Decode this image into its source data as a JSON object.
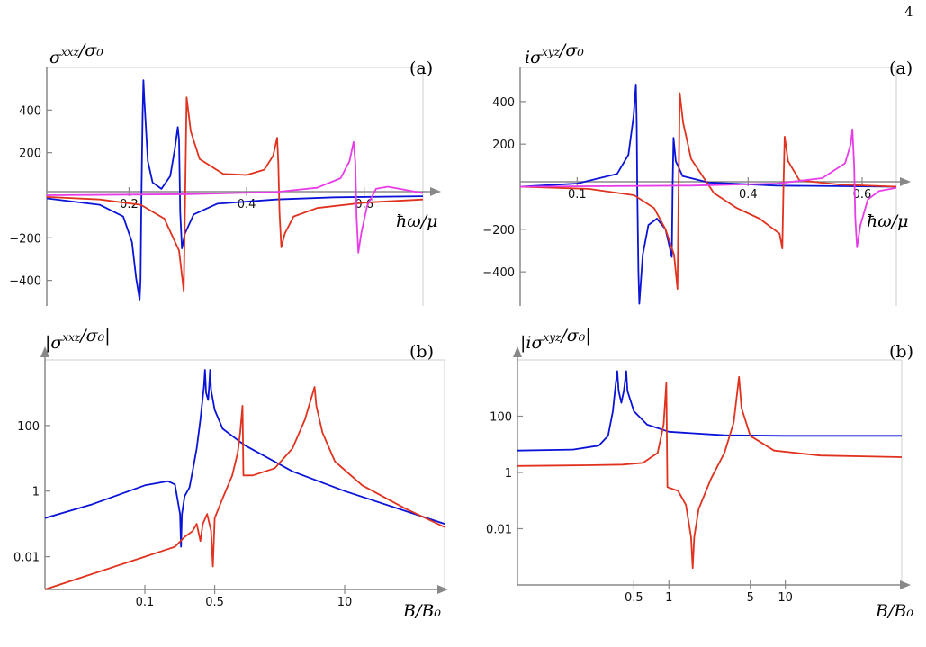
{
  "page_number": "4",
  "colors": {
    "blue": "#0a14d8",
    "red": "#e0321e",
    "magenta": "#e83ce8",
    "axis": "#888888"
  },
  "chart_data": [
    {
      "id": "tl",
      "type": "line",
      "panel_label": "(a)",
      "ylabel": "σ^{xxz}/σ₀",
      "xlabel": "ħω/μ",
      "x_scale": "linear",
      "y_scale": "linear",
      "xlim": [
        0.06,
        0.7
      ],
      "ylim": [
        -520,
        600
      ],
      "xticks": [
        {
          "v": 0.2,
          "label": "0.2"
        },
        {
          "v": 0.4,
          "label": "0.4"
        },
        {
          "v": 0.6,
          "label": "0.6"
        }
      ],
      "yticks": [
        {
          "v": 400,
          "label": "400"
        },
        {
          "v": 200,
          "label": "200"
        },
        {
          "v": -200,
          "label": "−200"
        },
        {
          "v": -400,
          "label": "−400"
        }
      ],
      "series": [
        {
          "color": "blue",
          "points": [
            [
              0.06,
              -15
            ],
            [
              0.15,
              -45
            ],
            [
              0.19,
              -100
            ],
            [
              0.205,
              -220
            ],
            [
              0.212,
              -390
            ],
            [
              0.218,
              -490
            ],
            [
              0.2195,
              -400
            ],
            [
              0.221,
              0
            ],
            [
              0.223,
              380
            ],
            [
              0.2245,
              540
            ],
            [
              0.226,
              450
            ],
            [
              0.232,
              160
            ],
            [
              0.24,
              60
            ],
            [
              0.255,
              30
            ],
            [
              0.27,
              90
            ],
            [
              0.278,
              220
            ],
            [
              0.283,
              320
            ],
            [
              0.285,
              260
            ],
            [
              0.287,
              -80
            ],
            [
              0.29,
              -250
            ],
            [
              0.295,
              -180
            ],
            [
              0.31,
              -90
            ],
            [
              0.35,
              -40
            ],
            [
              0.45,
              -20
            ],
            [
              0.55,
              -10
            ],
            [
              0.7,
              -5
            ]
          ]
        },
        {
          "color": "red",
          "points": [
            [
              0.06,
              -8
            ],
            [
              0.15,
              -20
            ],
            [
              0.22,
              -45
            ],
            [
              0.26,
              -110
            ],
            [
              0.285,
              -260
            ],
            [
              0.293,
              -450
            ],
            [
              0.2955,
              0
            ],
            [
              0.298,
              460
            ],
            [
              0.305,
              300
            ],
            [
              0.32,
              170
            ],
            [
              0.36,
              100
            ],
            [
              0.4,
              95
            ],
            [
              0.43,
              120
            ],
            [
              0.445,
              185
            ],
            [
              0.452,
              270
            ],
            [
              0.454,
              150
            ],
            [
              0.456,
              -80
            ],
            [
              0.459,
              -245
            ],
            [
              0.465,
              -180
            ],
            [
              0.48,
              -100
            ],
            [
              0.52,
              -60
            ],
            [
              0.6,
              -35
            ],
            [
              0.7,
              -20
            ]
          ]
        },
        {
          "color": "magenta",
          "points": [
            [
              0.06,
              0
            ],
            [
              0.3,
              5
            ],
            [
              0.45,
              15
            ],
            [
              0.52,
              35
            ],
            [
              0.56,
              80
            ],
            [
              0.575,
              160
            ],
            [
              0.582,
              250
            ],
            [
              0.585,
              150
            ],
            [
              0.587,
              -100
            ],
            [
              0.59,
              -270
            ],
            [
              0.595,
              -180
            ],
            [
              0.605,
              -50
            ],
            [
              0.62,
              30
            ],
            [
              0.64,
              40
            ],
            [
              0.7,
              10
            ]
          ]
        }
      ]
    },
    {
      "id": "tr",
      "type": "line",
      "panel_label": "(a)",
      "ylabel": "iσ^{xyz}/σ₀",
      "xlabel": "ħω/μ",
      "x_scale": "linear",
      "y_scale": "linear",
      "xlim": [
        0.0,
        0.66
      ],
      "ylim": [
        -560,
        560
      ],
      "xticks": [
        {
          "v": 0.1,
          "label": "0.1"
        },
        {
          "v": 0.4,
          "label": "0.4"
        },
        {
          "v": 0.6,
          "label": "0.6"
        }
      ],
      "yticks": [
        {
          "v": 400,
          "label": "400"
        },
        {
          "v": 200,
          "label": "200"
        },
        {
          "v": -200,
          "label": "−200"
        },
        {
          "v": -400,
          "label": "−400"
        }
      ],
      "series": [
        {
          "color": "blue",
          "points": [
            [
              0.0,
              0
            ],
            [
              0.1,
              15
            ],
            [
              0.17,
              60
            ],
            [
              0.19,
              150
            ],
            [
              0.199,
              330
            ],
            [
              0.203,
              480
            ],
            [
              0.2045,
              300
            ],
            [
              0.2055,
              0
            ],
            [
              0.2075,
              -400
            ],
            [
              0.209,
              -550
            ],
            [
              0.215,
              -320
            ],
            [
              0.225,
              -180
            ],
            [
              0.24,
              -150
            ],
            [
              0.255,
              -200
            ],
            [
              0.262,
              -280
            ],
            [
              0.266,
              -330
            ],
            [
              0.2675,
              0
            ],
            [
              0.269,
              230
            ],
            [
              0.273,
              120
            ],
            [
              0.285,
              50
            ],
            [
              0.33,
              20
            ],
            [
              0.45,
              5
            ],
            [
              0.66,
              0
            ]
          ]
        },
        {
          "color": "red",
          "points": [
            [
              0.0,
              0
            ],
            [
              0.12,
              -10
            ],
            [
              0.2,
              -40
            ],
            [
              0.235,
              -100
            ],
            [
              0.255,
              -200
            ],
            [
              0.27,
              -320
            ],
            [
              0.276,
              -480
            ],
            [
              0.278,
              0
            ],
            [
              0.28,
              440
            ],
            [
              0.286,
              300
            ],
            [
              0.3,
              130
            ],
            [
              0.34,
              -30
            ],
            [
              0.38,
              -100
            ],
            [
              0.42,
              -150
            ],
            [
              0.455,
              -220
            ],
            [
              0.46,
              -290
            ],
            [
              0.462,
              0
            ],
            [
              0.464,
              235
            ],
            [
              0.47,
              120
            ],
            [
              0.49,
              30
            ],
            [
              0.56,
              10
            ],
            [
              0.66,
              0
            ]
          ]
        },
        {
          "color": "magenta",
          "points": [
            [
              0.0,
              0
            ],
            [
              0.3,
              5
            ],
            [
              0.45,
              15
            ],
            [
              0.53,
              40
            ],
            [
              0.57,
              110
            ],
            [
              0.58,
              200
            ],
            [
              0.583,
              270
            ],
            [
              0.586,
              100
            ],
            [
              0.588,
              -150
            ],
            [
              0.591,
              -285
            ],
            [
              0.597,
              -180
            ],
            [
              0.61,
              -60
            ],
            [
              0.63,
              -20
            ],
            [
              0.66,
              -5
            ]
          ]
        }
      ]
    },
    {
      "id": "bl",
      "type": "line",
      "panel_label": "(b)",
      "ylabel": "|σ^{xxz}/σ₀|",
      "xlabel": "B/B₀",
      "x_scale": "log",
      "y_scale": "log",
      "xlim": [
        0.01,
        100
      ],
      "ylim": [
        0.001,
        10000
      ],
      "xticks": [
        {
          "v": 0.1,
          "label": "0.1"
        },
        {
          "v": 0.5,
          "label": "0.5"
        },
        {
          "v": 10,
          "label": "10"
        }
      ],
      "yticks": [
        {
          "v": 100,
          "label": "100"
        },
        {
          "v": 1,
          "label": "1"
        },
        {
          "v": 0.01,
          "label": "0.01"
        }
      ],
      "series": [
        {
          "color": "blue",
          "points": [
            [
              0.01,
              0.15
            ],
            [
              0.03,
              0.4
            ],
            [
              0.1,
              1.5
            ],
            [
              0.17,
              2.0
            ],
            [
              0.2,
              1.6
            ],
            [
              0.225,
              0.2
            ],
            [
              0.23,
              0.02
            ],
            [
              0.235,
              0.2
            ],
            [
              0.25,
              0.7
            ],
            [
              0.28,
              1.3
            ],
            [
              0.3,
              4
            ],
            [
              0.33,
              20
            ],
            [
              0.36,
              150
            ],
            [
              0.39,
              1500
            ],
            [
              0.4,
              5000
            ],
            [
              0.41,
              1000
            ],
            [
              0.43,
              600
            ],
            [
              0.44,
              1500
            ],
            [
              0.45,
              5000
            ],
            [
              0.46,
              1200
            ],
            [
              0.5,
              300
            ],
            [
              0.6,
              80
            ],
            [
              1,
              25
            ],
            [
              3,
              4
            ],
            [
              10,
              1.0
            ],
            [
              100,
              0.1
            ]
          ]
        },
        {
          "color": "red",
          "points": [
            [
              0.01,
              0.001
            ],
            [
              0.03,
              0.003
            ],
            [
              0.1,
              0.01
            ],
            [
              0.15,
              0.015
            ],
            [
              0.2,
              0.02
            ],
            [
              0.25,
              0.04
            ],
            [
              0.3,
              0.06
            ],
            [
              0.33,
              0.1
            ],
            [
              0.36,
              0.03
            ],
            [
              0.38,
              0.1
            ],
            [
              0.42,
              0.2
            ],
            [
              0.46,
              0.06
            ],
            [
              0.48,
              0.005
            ],
            [
              0.5,
              0.15
            ],
            [
              0.6,
              0.6
            ],
            [
              0.75,
              3
            ],
            [
              0.85,
              15
            ],
            [
              0.9,
              60
            ],
            [
              0.95,
              400
            ],
            [
              0.97,
              3
            ],
            [
              1.2,
              3
            ],
            [
              2.0,
              5
            ],
            [
              3,
              20
            ],
            [
              4,
              150
            ],
            [
              5,
              1500
            ],
            [
              5.2,
              400
            ],
            [
              6,
              60
            ],
            [
              8,
              8
            ],
            [
              15,
              1.5
            ],
            [
              40,
              0.3
            ],
            [
              100,
              0.08
            ]
          ]
        }
      ]
    },
    {
      "id": "br",
      "type": "line",
      "panel_label": "(b)",
      "ylabel": "|iσ^{xyz}/σ₀|",
      "xlabel": "B/B₀",
      "x_scale": "log",
      "y_scale": "log",
      "xlim": [
        0.05,
        100
      ],
      "ylim": [
        0.0001,
        10000
      ],
      "xticks": [
        {
          "v": 0.5,
          "label": "0.5"
        },
        {
          "v": 1,
          "label": "1"
        },
        {
          "v": 5,
          "label": "5"
        },
        {
          "v": 10,
          "label": "10"
        }
      ],
      "yticks": [
        {
          "v": 100,
          "label": "100"
        },
        {
          "v": 1,
          "label": "1"
        },
        {
          "v": 0.01,
          "label": "0.01"
        }
      ],
      "series": [
        {
          "color": "blue",
          "points": [
            [
              0.05,
              6
            ],
            [
              0.15,
              6.5
            ],
            [
              0.25,
              9
            ],
            [
              0.3,
              20
            ],
            [
              0.33,
              150
            ],
            [
              0.35,
              1500
            ],
            [
              0.36,
              4000
            ],
            [
              0.37,
              800
            ],
            [
              0.39,
              300
            ],
            [
              0.41,
              800
            ],
            [
              0.43,
              4000
            ],
            [
              0.44,
              800
            ],
            [
              0.5,
              150
            ],
            [
              0.65,
              50
            ],
            [
              1,
              28
            ],
            [
              3,
              21
            ],
            [
              10,
              20
            ],
            [
              100,
              20
            ]
          ]
        },
        {
          "color": "red",
          "points": [
            [
              0.05,
              1.7
            ],
            [
              0.2,
              1.8
            ],
            [
              0.4,
              1.9
            ],
            [
              0.6,
              2.2
            ],
            [
              0.8,
              5
            ],
            [
              0.9,
              50
            ],
            [
              0.95,
              1500
            ],
            [
              0.97,
              0.3
            ],
            [
              1.2,
              0.22
            ],
            [
              1.4,
              0.07
            ],
            [
              1.55,
              0.005
            ],
            [
              1.6,
              0.0004
            ],
            [
              1.65,
              0.005
            ],
            [
              1.8,
              0.05
            ],
            [
              2.3,
              0.6
            ],
            [
              3,
              5
            ],
            [
              3.6,
              60
            ],
            [
              4.0,
              2500
            ],
            [
              4.2,
              200
            ],
            [
              5,
              20
            ],
            [
              8,
              6
            ],
            [
              20,
              4
            ],
            [
              100,
              3.5
            ]
          ]
        }
      ]
    }
  ]
}
